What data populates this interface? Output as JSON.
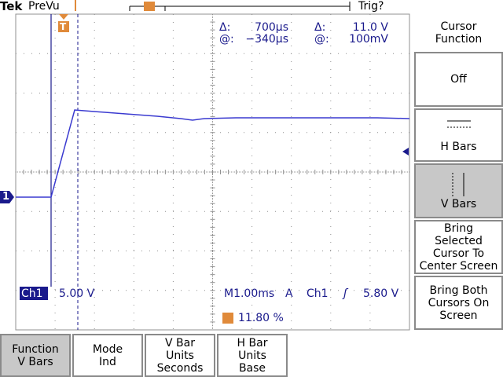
{
  "header": {
    "brand": "Tek",
    "status": "PreVu",
    "trigger_status": "Trig?"
  },
  "readouts": {
    "time_delta_label": "Δ:",
    "time_delta": "700µs",
    "time_pos_label": "@:",
    "time_pos": "−340µs",
    "volt_delta_label": "Δ:",
    "volt_delta": "11.0 V",
    "volt_pos_label": "@:",
    "volt_pos": "100mV"
  },
  "channel": {
    "name": "Ch1",
    "scale": "5.00 V"
  },
  "timebase": {
    "scale": "M1.00ms",
    "trigger_mode": "A",
    "trigger_source": "Ch1",
    "trigger_slope": "ʃ",
    "trigger_level": "5.80 V"
  },
  "trigger_position": "11.80 %",
  "markers": {
    "ground": "1",
    "trigger": "T"
  },
  "side_menu": {
    "title": [
      "Cursor",
      "Function"
    ],
    "items": [
      [
        "Off"
      ],
      [
        "H Bars"
      ],
      [
        "V Bars"
      ],
      [
        "Bring",
        "Selected",
        "Cursor To",
        "Center Screen"
      ],
      [
        "Bring Both",
        "Cursors On",
        "Screen"
      ]
    ]
  },
  "bottom_menu": [
    [
      "Function",
      "V Bars"
    ],
    [
      "Mode",
      "Ind"
    ],
    [
      "V Bar",
      "Units",
      "Seconds"
    ],
    [
      "H Bar",
      "Units",
      "Base"
    ]
  ]
}
